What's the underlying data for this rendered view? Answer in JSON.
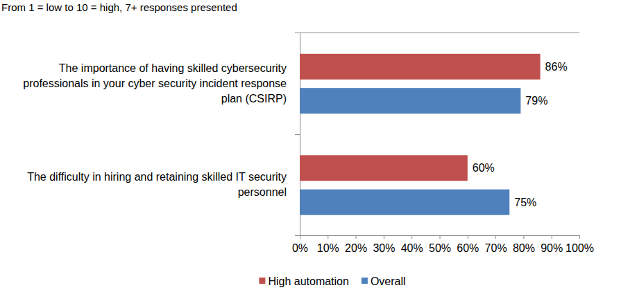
{
  "chart_data": {
    "type": "bar",
    "orientation": "horizontal",
    "subtitle": "From 1 = low to 10 = high, 7+ responses presented",
    "categories": [
      "The importance of having skilled cybersecurity professionals in your cyber security incident response plan (CSIRP)",
      "The difficulty in hiring and retaining skilled IT security personnel"
    ],
    "series": [
      {
        "name": "High automation",
        "color": "#c0504d",
        "values": [
          86,
          60
        ],
        "value_labels": [
          "86%",
          "60%"
        ]
      },
      {
        "name": "Overall",
        "color": "#4f81bd",
        "values": [
          79,
          75
        ],
        "value_labels": [
          "79%",
          "75%"
        ]
      }
    ],
    "xlim": [
      0,
      100
    ],
    "xticks": [
      {
        "value": 0,
        "label": "0%"
      },
      {
        "value": 10,
        "label": "10%"
      },
      {
        "value": 20,
        "label": "20%"
      },
      {
        "value": 30,
        "label": "30%"
      },
      {
        "value": 40,
        "label": "40%"
      },
      {
        "value": 50,
        "label": "50%"
      },
      {
        "value": 60,
        "label": "60%"
      },
      {
        "value": 70,
        "label": "70%"
      },
      {
        "value": 80,
        "label": "80%"
      },
      {
        "value": 90,
        "label": "90%"
      },
      {
        "value": 100,
        "label": "100%"
      }
    ],
    "grid": false,
    "data_labels": true,
    "legend": "bottom"
  }
}
